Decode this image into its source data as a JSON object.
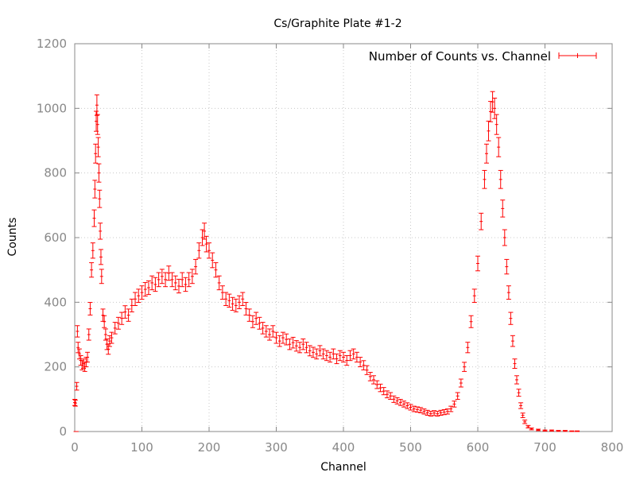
{
  "chart_data": {
    "type": "scatter",
    "title": "Cs/Graphite Plate #1-2",
    "xlabel": "Channel",
    "ylabel": "Counts",
    "xlim": [
      0,
      800
    ],
    "ylim": [
      0,
      1200
    ],
    "x_ticks": [
      0,
      100,
      200,
      300,
      400,
      500,
      600,
      700,
      800
    ],
    "y_ticks": [
      0,
      200,
      400,
      600,
      800,
      1000,
      1200
    ],
    "grid": true,
    "legend_position": "top-right",
    "error_bars": "sqrt(counts)",
    "colors": {
      "series": "#ff0000",
      "grid": "#c8c8c8",
      "axis": "#888888"
    },
    "series": [
      {
        "name": "Number of Counts vs. Channel",
        "points": [
          [
            0,
            90
          ],
          [
            1,
            88
          ],
          [
            2,
            0
          ],
          [
            3,
            140
          ],
          [
            4,
            310
          ],
          [
            5,
            260
          ],
          [
            7,
            240
          ],
          [
            9,
            220
          ],
          [
            11,
            205
          ],
          [
            13,
            210
          ],
          [
            15,
            200
          ],
          [
            17,
            215
          ],
          [
            19,
            230
          ],
          [
            21,
            300
          ],
          [
            23,
            380
          ],
          [
            25,
            500
          ],
          [
            27,
            560
          ],
          [
            29,
            660
          ],
          [
            30,
            750
          ],
          [
            31,
            860
          ],
          [
            32,
            960
          ],
          [
            33,
            1010
          ],
          [
            34,
            950
          ],
          [
            35,
            880
          ],
          [
            36,
            800
          ],
          [
            37,
            720
          ],
          [
            38,
            620
          ],
          [
            39,
            540
          ],
          [
            40,
            480
          ],
          [
            42,
            360
          ],
          [
            44,
            340
          ],
          [
            46,
            300
          ],
          [
            48,
            270
          ],
          [
            50,
            255
          ],
          [
            52,
            280
          ],
          [
            55,
            290
          ],
          [
            60,
            320
          ],
          [
            65,
            335
          ],
          [
            70,
            350
          ],
          [
            75,
            370
          ],
          [
            80,
            360
          ],
          [
            85,
            390
          ],
          [
            90,
            410
          ],
          [
            95,
            420
          ],
          [
            100,
            430
          ],
          [
            105,
            440
          ],
          [
            110,
            445
          ],
          [
            115,
            460
          ],
          [
            120,
            455
          ],
          [
            125,
            470
          ],
          [
            130,
            480
          ],
          [
            135,
            470
          ],
          [
            140,
            490
          ],
          [
            145,
            470
          ],
          [
            150,
            460
          ],
          [
            155,
            450
          ],
          [
            160,
            470
          ],
          [
            165,
            455
          ],
          [
            170,
            470
          ],
          [
            175,
            480
          ],
          [
            180,
            510
          ],
          [
            185,
            560
          ],
          [
            190,
            600
          ],
          [
            193,
            620
          ],
          [
            196,
            580
          ],
          [
            200,
            560
          ],
          [
            205,
            530
          ],
          [
            210,
            500
          ],
          [
            215,
            460
          ],
          [
            220,
            430
          ],
          [
            225,
            410
          ],
          [
            230,
            405
          ],
          [
            235,
            395
          ],
          [
            240,
            390
          ],
          [
            245,
            400
          ],
          [
            250,
            410
          ],
          [
            255,
            380
          ],
          [
            260,
            360
          ],
          [
            265,
            340
          ],
          [
            270,
            350
          ],
          [
            275,
            335
          ],
          [
            280,
            320
          ],
          [
            285,
            310
          ],
          [
            290,
            300
          ],
          [
            295,
            310
          ],
          [
            300,
            290
          ],
          [
            305,
            280
          ],
          [
            310,
            290
          ],
          [
            315,
            285
          ],
          [
            320,
            270
          ],
          [
            325,
            275
          ],
          [
            330,
            265
          ],
          [
            335,
            260
          ],
          [
            340,
            270
          ],
          [
            345,
            260
          ],
          [
            350,
            250
          ],
          [
            355,
            245
          ],
          [
            360,
            240
          ],
          [
            365,
            250
          ],
          [
            370,
            240
          ],
          [
            375,
            235
          ],
          [
            380,
            230
          ],
          [
            385,
            240
          ],
          [
            390,
            225
          ],
          [
            395,
            235
          ],
          [
            400,
            230
          ],
          [
            405,
            220
          ],
          [
            410,
            235
          ],
          [
            415,
            240
          ],
          [
            420,
            230
          ],
          [
            425,
            215
          ],
          [
            430,
            205
          ],
          [
            435,
            190
          ],
          [
            440,
            170
          ],
          [
            445,
            160
          ],
          [
            450,
            145
          ],
          [
            455,
            135
          ],
          [
            460,
            125
          ],
          [
            465,
            115
          ],
          [
            470,
            110
          ],
          [
            475,
            100
          ],
          [
            480,
            95
          ],
          [
            485,
            90
          ],
          [
            490,
            85
          ],
          [
            495,
            80
          ],
          [
            500,
            75
          ],
          [
            505,
            70
          ],
          [
            510,
            68
          ],
          [
            515,
            66
          ],
          [
            520,
            62
          ],
          [
            525,
            58
          ],
          [
            530,
            55
          ],
          [
            535,
            57
          ],
          [
            540,
            55
          ],
          [
            545,
            58
          ],
          [
            550,
            60
          ],
          [
            555,
            62
          ],
          [
            560,
            70
          ],
          [
            565,
            85
          ],
          [
            570,
            110
          ],
          [
            575,
            150
          ],
          [
            580,
            200
          ],
          [
            585,
            260
          ],
          [
            590,
            340
          ],
          [
            595,
            420
          ],
          [
            600,
            520
          ],
          [
            605,
            650
          ],
          [
            610,
            780
          ],
          [
            613,
            860
          ],
          [
            616,
            930
          ],
          [
            619,
            990
          ],
          [
            622,
            1020
          ],
          [
            625,
            1000
          ],
          [
            628,
            950
          ],
          [
            631,
            880
          ],
          [
            634,
            780
          ],
          [
            637,
            690
          ],
          [
            640,
            600
          ],
          [
            643,
            510
          ],
          [
            646,
            430
          ],
          [
            649,
            350
          ],
          [
            652,
            280
          ],
          [
            655,
            210
          ],
          [
            658,
            160
          ],
          [
            661,
            120
          ],
          [
            664,
            80
          ],
          [
            667,
            50
          ],
          [
            670,
            30
          ],
          [
            675,
            15
          ],
          [
            680,
            8
          ],
          [
            690,
            5
          ],
          [
            700,
            3
          ],
          [
            710,
            3
          ],
          [
            720,
            2
          ],
          [
            730,
            2
          ],
          [
            740,
            1
          ],
          [
            748,
            1
          ]
        ]
      }
    ]
  }
}
